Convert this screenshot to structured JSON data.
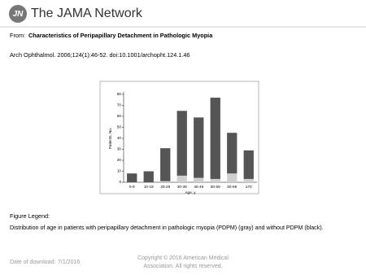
{
  "header": {
    "logo": "JN",
    "brand": "The JAMA Network"
  },
  "citation": {
    "from_label": "From:",
    "title": "Characteristics of Peripapillary Detachment in Pathologic Myopia",
    "source": "Arch Ophthalmol. 2006;124(1):46-52. doi:10.1001/archopht.124.1.46"
  },
  "chart_data": {
    "type": "stacked-bar",
    "y_label": "Patients, No.",
    "x_label": "Age, y",
    "categories": [
      "0-9",
      "10-19",
      "20-29",
      "30-39",
      "40-49",
      "50-59",
      "60-69",
      "≥70"
    ],
    "series": [
      {
        "color": "#cfcfcf",
        "values": [
          0,
          0,
          1,
          6,
          4,
          3,
          8,
          3
        ]
      },
      {
        "color": "#555555",
        "values": [
          8,
          10,
          30,
          59,
          55,
          74,
          37,
          26
        ]
      }
    ],
    "ylim": [
      0,
      80
    ],
    "yticks": [
      0,
      10,
      20,
      30,
      40,
      50,
      60,
      70,
      80
    ]
  },
  "legend": {
    "heading": "Figure Legend:",
    "text": "Distribution of age in patients with peripapillary detachment in pathologic myopia (PDPM) (gray) and without PDPM (black)."
  },
  "footer": {
    "download_label": "Date of download:",
    "download_date": "7/1/2016",
    "copyright": [
      "Copyright © 2016 American Medical",
      "Association. All rights reserved."
    ]
  }
}
